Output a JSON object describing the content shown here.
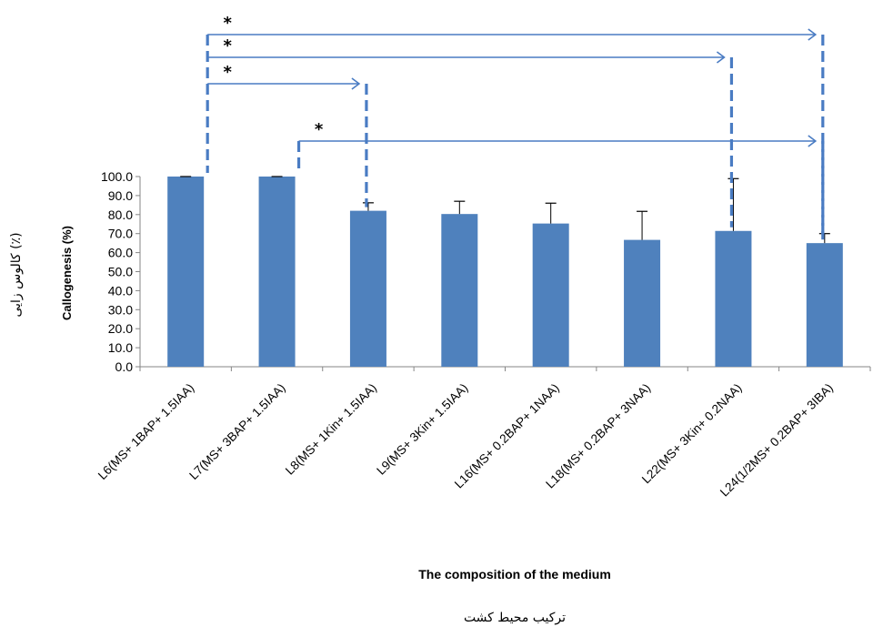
{
  "chart_data": {
    "type": "bar",
    "categories": [
      "L6(MS+ 1BAP+ 1.5IAA)",
      "L7(MS+ 3BAP+ 1.5IAA)",
      "L8(MS+ 1Kin+ 1.5IAA)",
      "L9(MS+ 3Kin+ 1.5IAA)",
      "L16(MS+ 0.2BAP+ 1NAA)",
      "L18(MS+ 0.2BAP+ 3NAA)",
      "L22(MS+ 3Kin+ 0.2NAA)",
      "L24(1/2MS+ 0.2BAP+ 3IBA)"
    ],
    "values": [
      100.0,
      100.0,
      82.0,
      80.3,
      75.3,
      66.7,
      71.4,
      65.0
    ],
    "error_bars": [
      0.0,
      0.0,
      4.2,
      6.7,
      10.7,
      15.0,
      27.5,
      5.0
    ],
    "ylabel": "Callogenesis  (%)",
    "ylabel_fa": "کالوس زایی (٪)",
    "xlabel": "The composition  of the medium",
    "xlabel_fa": "ترکیب محیط کشت",
    "ylim": [
      0,
      100
    ],
    "yticks": [
      "0.0",
      "10.0",
      "20.0",
      "30.0",
      "40.0",
      "50.0",
      "60.0",
      "70.0",
      "80.0",
      "90.0",
      "100.0"
    ],
    "bar_color": "#4f81bd",
    "comparison_color": "#4a7cc3",
    "grid": false,
    "legend": "none",
    "annotations": [
      {
        "from": 0,
        "to": 7,
        "label": "*"
      },
      {
        "from": 0,
        "to": 6,
        "label": "*"
      },
      {
        "from": 0,
        "to": 2,
        "label": "*"
      },
      {
        "from": 1,
        "to": 7,
        "label": "*"
      }
    ]
  }
}
